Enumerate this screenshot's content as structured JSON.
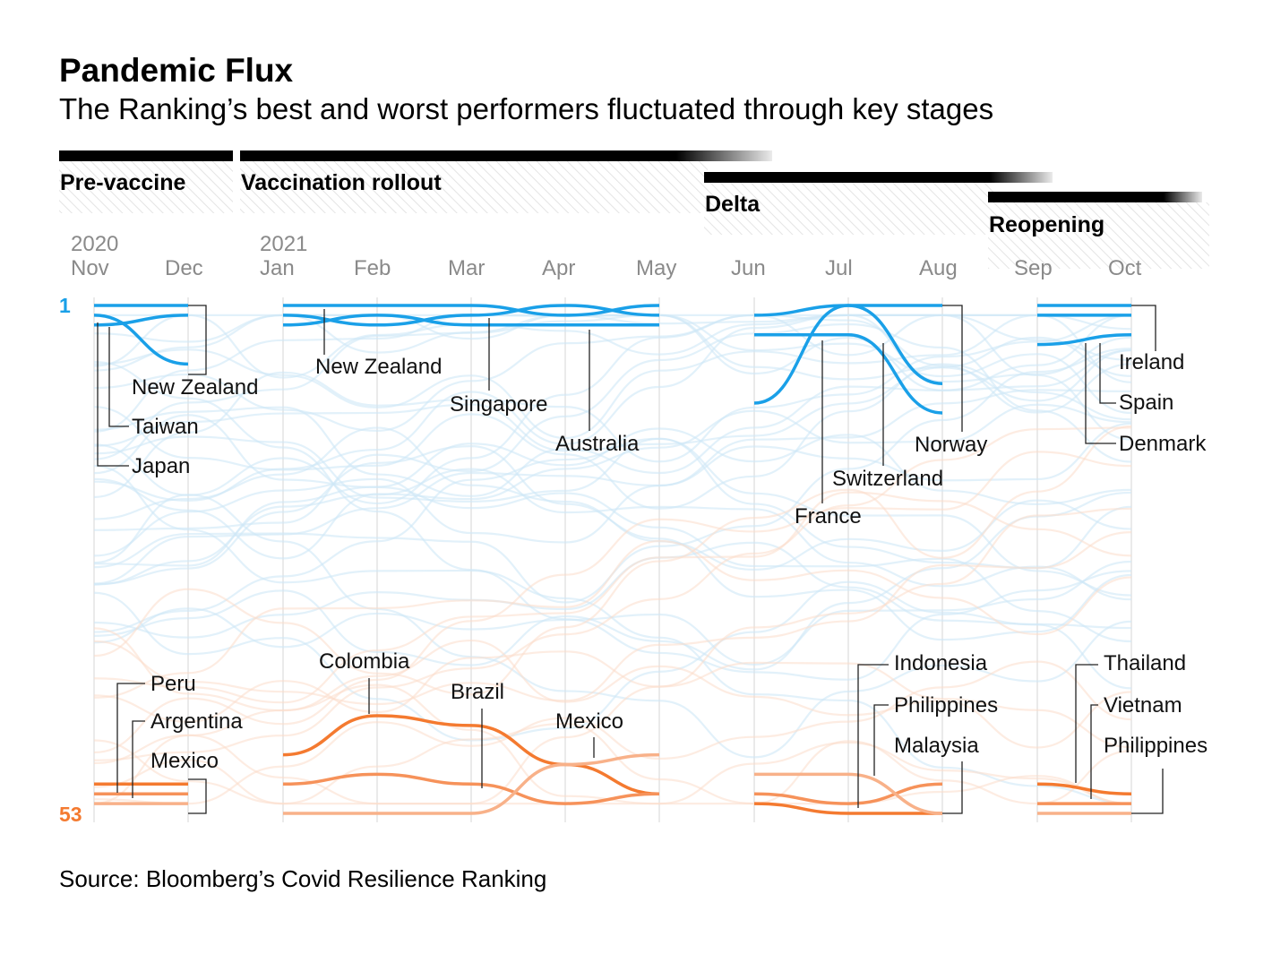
{
  "title": "Pandemic Flux",
  "subtitle": "The Ranking’s best and worst performers fluctuated through key stages",
  "source": "Source: Bloomberg’s Covid Resilience Ranking",
  "chart_data": {
    "type": "line",
    "y_axis": {
      "top_label": "1",
      "bottom_label": "53",
      "range": [
        1,
        53
      ],
      "inverted": true
    },
    "colors": {
      "best": "#1aa0e8",
      "worst": "#f47a30",
      "best_bg": "#cfe8f6",
      "worst_bg": "#fbdccb"
    },
    "phases": [
      {
        "name": "Pre-vaccine",
        "start": 0,
        "end": 1
      },
      {
        "name": "Vaccination rollout",
        "start": 2,
        "end": 6
      },
      {
        "name": "Delta",
        "start": 7,
        "end": 9
      },
      {
        "name": "Reopening",
        "start": 10,
        "end": 11
      }
    ],
    "years": [
      {
        "label": "2020",
        "month_index": 0
      },
      {
        "label": "2021",
        "month_index": 2
      }
    ],
    "months": [
      "Nov",
      "Dec",
      "Jan",
      "Feb",
      "Mar",
      "Apr",
      "May",
      "Jun",
      "Jul",
      "Aug",
      "Sep",
      "Oct"
    ],
    "segments": [
      {
        "start": 0,
        "end": 1,
        "best": [
          {
            "name": "New Zealand",
            "ranks": [
              1,
              1
            ]
          },
          {
            "name": "Taiwan",
            "ranks": [
              3,
              2
            ]
          },
          {
            "name": "Japan",
            "ranks": [
              2,
              7
            ]
          }
        ],
        "worst": [
          {
            "name": "Peru",
            "ranks": [
              50,
              50
            ]
          },
          {
            "name": "Argentina",
            "ranks": [
              51,
              51
            ]
          },
          {
            "name": "Mexico",
            "ranks": [
              52,
              52
            ]
          }
        ]
      },
      {
        "start": 2,
        "end": 6,
        "best": [
          {
            "name": "New Zealand",
            "ranks": [
              1,
              1,
              1,
              2,
              1
            ]
          },
          {
            "name": "Singapore",
            "ranks": [
              2,
              3,
              2,
              1,
              2
            ]
          },
          {
            "name": "Australia",
            "ranks": [
              3,
              2,
              3,
              3,
              3
            ]
          }
        ],
        "worst": [
          {
            "name": "Colombia",
            "ranks": [
              47,
              43,
              44,
              48,
              51
            ]
          },
          {
            "name": "Brazil",
            "ranks": [
              50,
              49,
              50,
              52,
              51
            ]
          },
          {
            "name": "Mexico",
            "ranks": [
              53,
              53,
              53,
              48,
              47
            ]
          }
        ]
      },
      {
        "start": 7,
        "end": 9,
        "best": [
          {
            "name": "France",
            "ranks": [
              11,
              1,
              9
            ]
          },
          {
            "name": "Switzerland",
            "ranks": [
              4,
              4,
              12
            ]
          },
          {
            "name": "Norway",
            "ranks": [
              2,
              1,
              1
            ]
          }
        ],
        "worst": [
          {
            "name": "Indonesia",
            "ranks": [
              52,
              53,
              53
            ]
          },
          {
            "name": "Philippines",
            "ranks": [
              51,
              52,
              50
            ]
          },
          {
            "name": "Malaysia",
            "ranks": [
              49,
              49,
              53
            ]
          }
        ]
      },
      {
        "start": 10,
        "end": 11,
        "best": [
          {
            "name": "Ireland",
            "ranks": [
              1,
              1
            ]
          },
          {
            "name": "Spain",
            "ranks": [
              2,
              2
            ]
          },
          {
            "name": "Denmark",
            "ranks": [
              5,
              4
            ]
          }
        ],
        "worst": [
          {
            "name": "Thailand",
            "ranks": [
              50,
              51
            ]
          },
          {
            "name": "Vietnam",
            "ranks": [
              52,
              52
            ]
          },
          {
            "name": "Philippines",
            "ranks": [
              53,
              53
            ]
          }
        ]
      }
    ]
  }
}
